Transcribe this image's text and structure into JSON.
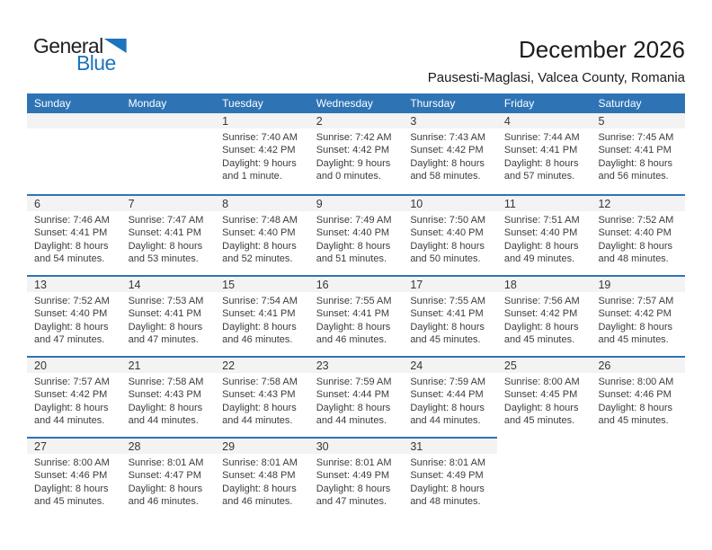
{
  "logo": {
    "general": "General",
    "blue": "Blue"
  },
  "header": {
    "title": "December 2026",
    "subtitle": "Pausesti-Maglasi, Valcea County, Romania"
  },
  "colors": {
    "header_blue": "#2e74b5",
    "row_line_blue": "#2e74b5",
    "band_gray": "#f3f3f3",
    "logo_blue": "#1c75bc"
  },
  "calendar": {
    "weekdays": [
      "Sunday",
      "Monday",
      "Tuesday",
      "Wednesday",
      "Thursday",
      "Friday",
      "Saturday"
    ],
    "labels": {
      "sunrise": "Sunrise:",
      "sunset": "Sunset:",
      "daylight": "Daylight:"
    },
    "weeks": [
      [
        {
          "day": ""
        },
        {
          "day": ""
        },
        {
          "day": "1",
          "sunrise": "7:40 AM",
          "sunset": "4:42 PM",
          "daylight": "9 hours and 1 minute."
        },
        {
          "day": "2",
          "sunrise": "7:42 AM",
          "sunset": "4:42 PM",
          "daylight": "9 hours and 0 minutes."
        },
        {
          "day": "3",
          "sunrise": "7:43 AM",
          "sunset": "4:42 PM",
          "daylight": "8 hours and 58 minutes."
        },
        {
          "day": "4",
          "sunrise": "7:44 AM",
          "sunset": "4:41 PM",
          "daylight": "8 hours and 57 minutes."
        },
        {
          "day": "5",
          "sunrise": "7:45 AM",
          "sunset": "4:41 PM",
          "daylight": "8 hours and 56 minutes."
        }
      ],
      [
        {
          "day": "6",
          "sunrise": "7:46 AM",
          "sunset": "4:41 PM",
          "daylight": "8 hours and 54 minutes."
        },
        {
          "day": "7",
          "sunrise": "7:47 AM",
          "sunset": "4:41 PM",
          "daylight": "8 hours and 53 minutes."
        },
        {
          "day": "8",
          "sunrise": "7:48 AM",
          "sunset": "4:40 PM",
          "daylight": "8 hours and 52 minutes."
        },
        {
          "day": "9",
          "sunrise": "7:49 AM",
          "sunset": "4:40 PM",
          "daylight": "8 hours and 51 minutes."
        },
        {
          "day": "10",
          "sunrise": "7:50 AM",
          "sunset": "4:40 PM",
          "daylight": "8 hours and 50 minutes."
        },
        {
          "day": "11",
          "sunrise": "7:51 AM",
          "sunset": "4:40 PM",
          "daylight": "8 hours and 49 minutes."
        },
        {
          "day": "12",
          "sunrise": "7:52 AM",
          "sunset": "4:40 PM",
          "daylight": "8 hours and 48 minutes."
        }
      ],
      [
        {
          "day": "13",
          "sunrise": "7:52 AM",
          "sunset": "4:40 PM",
          "daylight": "8 hours and 47 minutes."
        },
        {
          "day": "14",
          "sunrise": "7:53 AM",
          "sunset": "4:41 PM",
          "daylight": "8 hours and 47 minutes."
        },
        {
          "day": "15",
          "sunrise": "7:54 AM",
          "sunset": "4:41 PM",
          "daylight": "8 hours and 46 minutes."
        },
        {
          "day": "16",
          "sunrise": "7:55 AM",
          "sunset": "4:41 PM",
          "daylight": "8 hours and 46 minutes."
        },
        {
          "day": "17",
          "sunrise": "7:55 AM",
          "sunset": "4:41 PM",
          "daylight": "8 hours and 45 minutes."
        },
        {
          "day": "18",
          "sunrise": "7:56 AM",
          "sunset": "4:42 PM",
          "daylight": "8 hours and 45 minutes."
        },
        {
          "day": "19",
          "sunrise": "7:57 AM",
          "sunset": "4:42 PM",
          "daylight": "8 hours and 45 minutes."
        }
      ],
      [
        {
          "day": "20",
          "sunrise": "7:57 AM",
          "sunset": "4:42 PM",
          "daylight": "8 hours and 44 minutes."
        },
        {
          "day": "21",
          "sunrise": "7:58 AM",
          "sunset": "4:43 PM",
          "daylight": "8 hours and 44 minutes."
        },
        {
          "day": "22",
          "sunrise": "7:58 AM",
          "sunset": "4:43 PM",
          "daylight": "8 hours and 44 minutes."
        },
        {
          "day": "23",
          "sunrise": "7:59 AM",
          "sunset": "4:44 PM",
          "daylight": "8 hours and 44 minutes."
        },
        {
          "day": "24",
          "sunrise": "7:59 AM",
          "sunset": "4:44 PM",
          "daylight": "8 hours and 44 minutes."
        },
        {
          "day": "25",
          "sunrise": "8:00 AM",
          "sunset": "4:45 PM",
          "daylight": "8 hours and 45 minutes."
        },
        {
          "day": "26",
          "sunrise": "8:00 AM",
          "sunset": "4:46 PM",
          "daylight": "8 hours and 45 minutes."
        }
      ],
      [
        {
          "day": "27",
          "sunrise": "8:00 AM",
          "sunset": "4:46 PM",
          "daylight": "8 hours and 45 minutes."
        },
        {
          "day": "28",
          "sunrise": "8:01 AM",
          "sunset": "4:47 PM",
          "daylight": "8 hours and 46 minutes."
        },
        {
          "day": "29",
          "sunrise": "8:01 AM",
          "sunset": "4:48 PM",
          "daylight": "8 hours and 46 minutes."
        },
        {
          "day": "30",
          "sunrise": "8:01 AM",
          "sunset": "4:49 PM",
          "daylight": "8 hours and 47 minutes."
        },
        {
          "day": "31",
          "sunrise": "8:01 AM",
          "sunset": "4:49 PM",
          "daylight": "8 hours and 48 minutes."
        },
        null,
        null
      ]
    ]
  }
}
